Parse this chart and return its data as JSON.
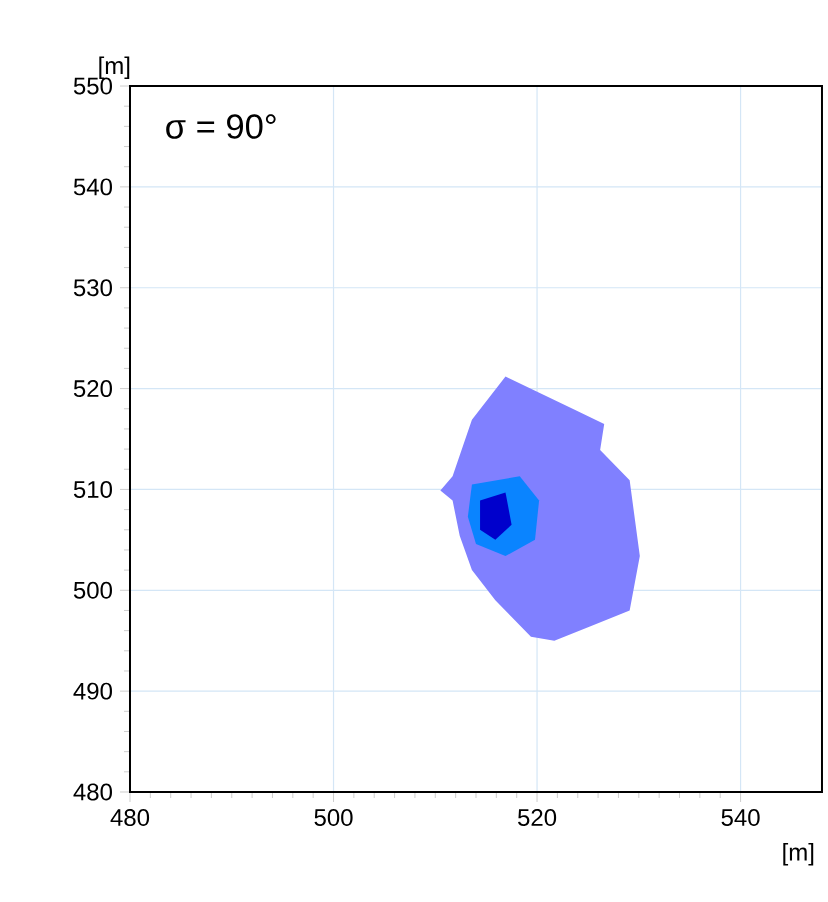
{
  "chart_data": {
    "type": "area",
    "xlabel": "[m]",
    "ylabel": "[m]",
    "annotations": [
      "σ = 90°"
    ],
    "xlim": [
      480,
      548
    ],
    "ylim": [
      480,
      550
    ],
    "xticks": [
      480,
      500,
      520,
      540
    ],
    "yticks": [
      480,
      490,
      500,
      510,
      520,
      530,
      540,
      550
    ],
    "grid": true,
    "series": [
      {
        "color": "#8080ff",
        "x": [
          516.9,
          523.7,
          526.6,
          526.2,
          529.1,
          530.1,
          529.1,
          525.2,
          521.7,
          519.4,
          515.9,
          513.6,
          512.4,
          511.7,
          510.5,
          511.7,
          513.6
        ],
        "values": [
          521.2,
          517.9,
          516.5,
          513.9,
          510.9,
          503.4,
          498.0,
          496.4,
          495.0,
          495.4,
          499.0,
          502.0,
          505.4,
          508.9,
          509.9,
          511.3,
          516.9
        ]
      },
      {
        "color": "#0a84ff",
        "x": [
          513.6,
          518.3,
          520.2,
          519.8,
          516.9,
          514.0,
          513.2
        ],
        "values": [
          510.5,
          511.3,
          508.9,
          505.0,
          503.4,
          504.6,
          507.3
        ]
      },
      {
        "color": "#0000cc",
        "x": [
          514.4,
          516.9,
          517.5,
          515.9,
          514.4
        ],
        "values": [
          508.9,
          509.7,
          506.5,
          505.0,
          506.0
        ]
      }
    ]
  }
}
